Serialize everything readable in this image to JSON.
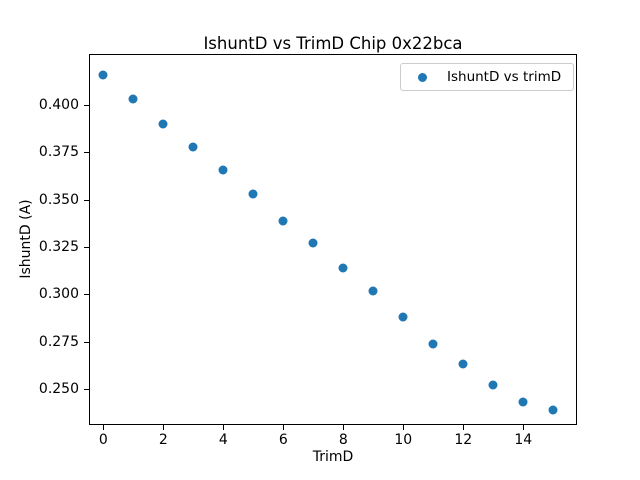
{
  "chart_data": {
    "type": "scatter",
    "title": "IshuntD vs TrimD Chip 0x22bca",
    "xlabel": "TrimD",
    "ylabel": "IshuntD (A)",
    "legend_label": "IshuntD vs trimD",
    "legend_position": "upper right",
    "grid": false,
    "marker_color": "#1f77b4",
    "x": [
      0,
      1,
      2,
      3,
      4,
      5,
      6,
      7,
      8,
      9,
      10,
      11,
      12,
      13,
      14,
      15
    ],
    "y": [
      0.416,
      0.403,
      0.39,
      0.378,
      0.366,
      0.353,
      0.339,
      0.327,
      0.314,
      0.302,
      0.288,
      0.274,
      0.263,
      0.252,
      0.243,
      0.239
    ],
    "xlim": [
      -0.48,
      15.79
    ],
    "ylim": [
      0.231,
      0.427
    ],
    "xticks": [
      0,
      2,
      4,
      6,
      8,
      10,
      12,
      14
    ],
    "xticklabels": [
      "0",
      "2",
      "4",
      "6",
      "8",
      "10",
      "12",
      "14"
    ],
    "yticks": [
      0.25,
      0.275,
      0.3,
      0.325,
      0.35,
      0.375,
      0.4
    ],
    "yticklabels": [
      "0.250",
      "0.275",
      "0.300",
      "0.325",
      "0.350",
      "0.375",
      "0.400"
    ]
  }
}
